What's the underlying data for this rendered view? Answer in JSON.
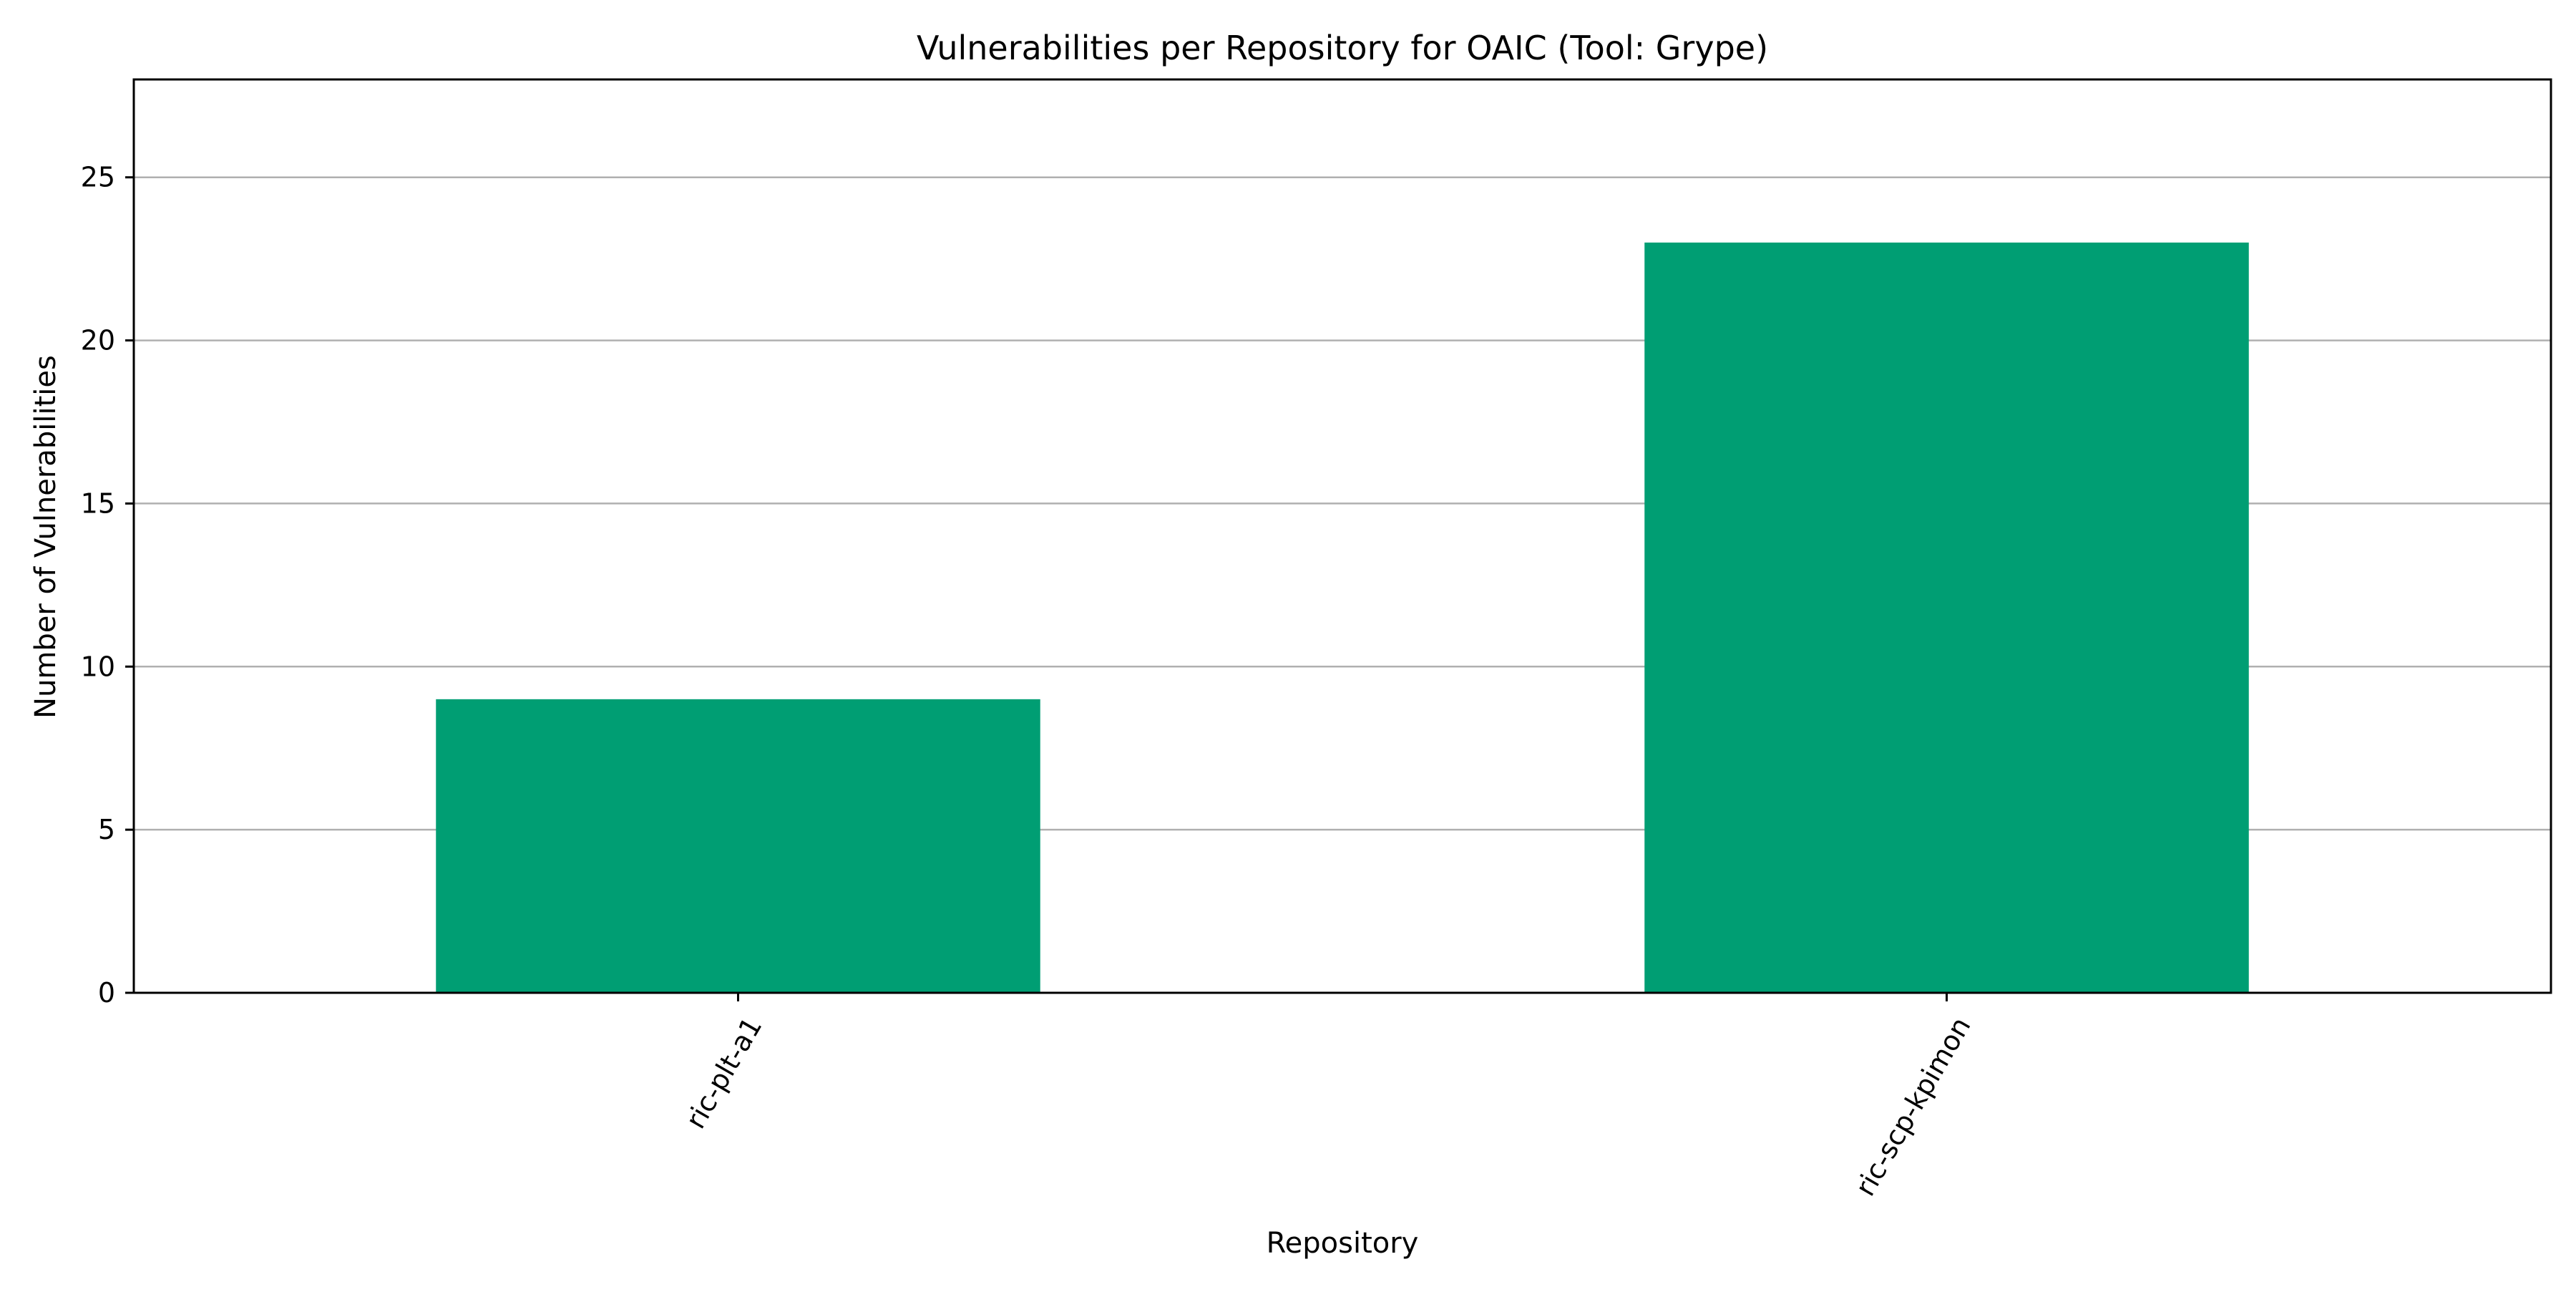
{
  "chart_data": {
    "type": "bar",
    "title": "Vulnerabilities per Repository for OAIC (Tool: Grype)",
    "xlabel": "Repository",
    "ylabel": "Number of Vulnerabilities",
    "categories": [
      "ric-plt-a1",
      "ric-scp-kpimon"
    ],
    "values": [
      9,
      23
    ],
    "ylim": [
      0,
      28
    ],
    "yticks": [
      0,
      5,
      10,
      15,
      20,
      25
    ],
    "grid": "horizontal",
    "bar_color": "#009E73",
    "grid_color": "#b0b0b0",
    "xtick_rotation": "60 degrees"
  }
}
